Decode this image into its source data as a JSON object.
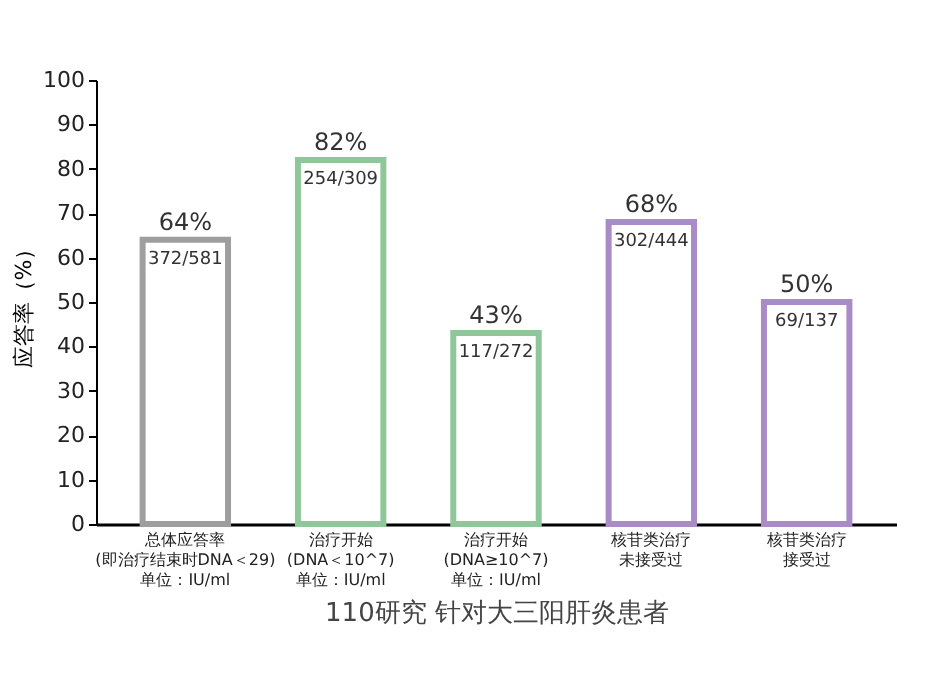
{
  "chart_data": {
    "type": "bar",
    "xlabel": "110研究 针对大三阳肝炎患者",
    "ylabel": "应答率（%）",
    "categories": [
      "总体应答率\n(即治疗结束时DNA＜29)\n单位：IU/ml",
      "治疗开始\n(DNA＜10^7)\n单位：IU/ml",
      "治疗开始\n(DNA≥10^7)\n单位：IU/ml",
      "核苷类治疗未接受过",
      "核苷类治疗接受过"
    ],
    "values": [
      64,
      82,
      43,
      68,
      50
    ],
    "colors": [
      "#9e9e9e",
      "#8fc79b",
      "#8fc79b",
      "#a98bc6",
      "#a98bc6"
    ],
    "value_labels": [
      "64%",
      "82%",
      "43%",
      "68%",
      "50%"
    ],
    "annotations": [
      {
        "text": "372/581",
        "x": "总体应答率\n(即治疗结束时DNA＜29)\n单位：IU/ml",
        "y": 64
      },
      {
        "text": "254/309",
        "x": "治疗开始\n(DNA＜10^7)\n单位：IU/ml",
        "y": 82
      },
      {
        "text": "117/272",
        "x": "治疗开始\n(DNA≥10^7)\n单位：IU/ml",
        "y": 43
      },
      {
        "text": "302/444",
        "x": "核苷类治疗未接受过",
        "y": 68
      },
      {
        "text": "69/137",
        "x": "核苷类治疗接受过",
        "y": 50
      }
    ],
    "ylim": [
      0,
      100
    ],
    "yticks": [
      0,
      10,
      20,
      30,
      40,
      50,
      60,
      70,
      80,
      90,
      100
    ],
    "grid": false
  }
}
